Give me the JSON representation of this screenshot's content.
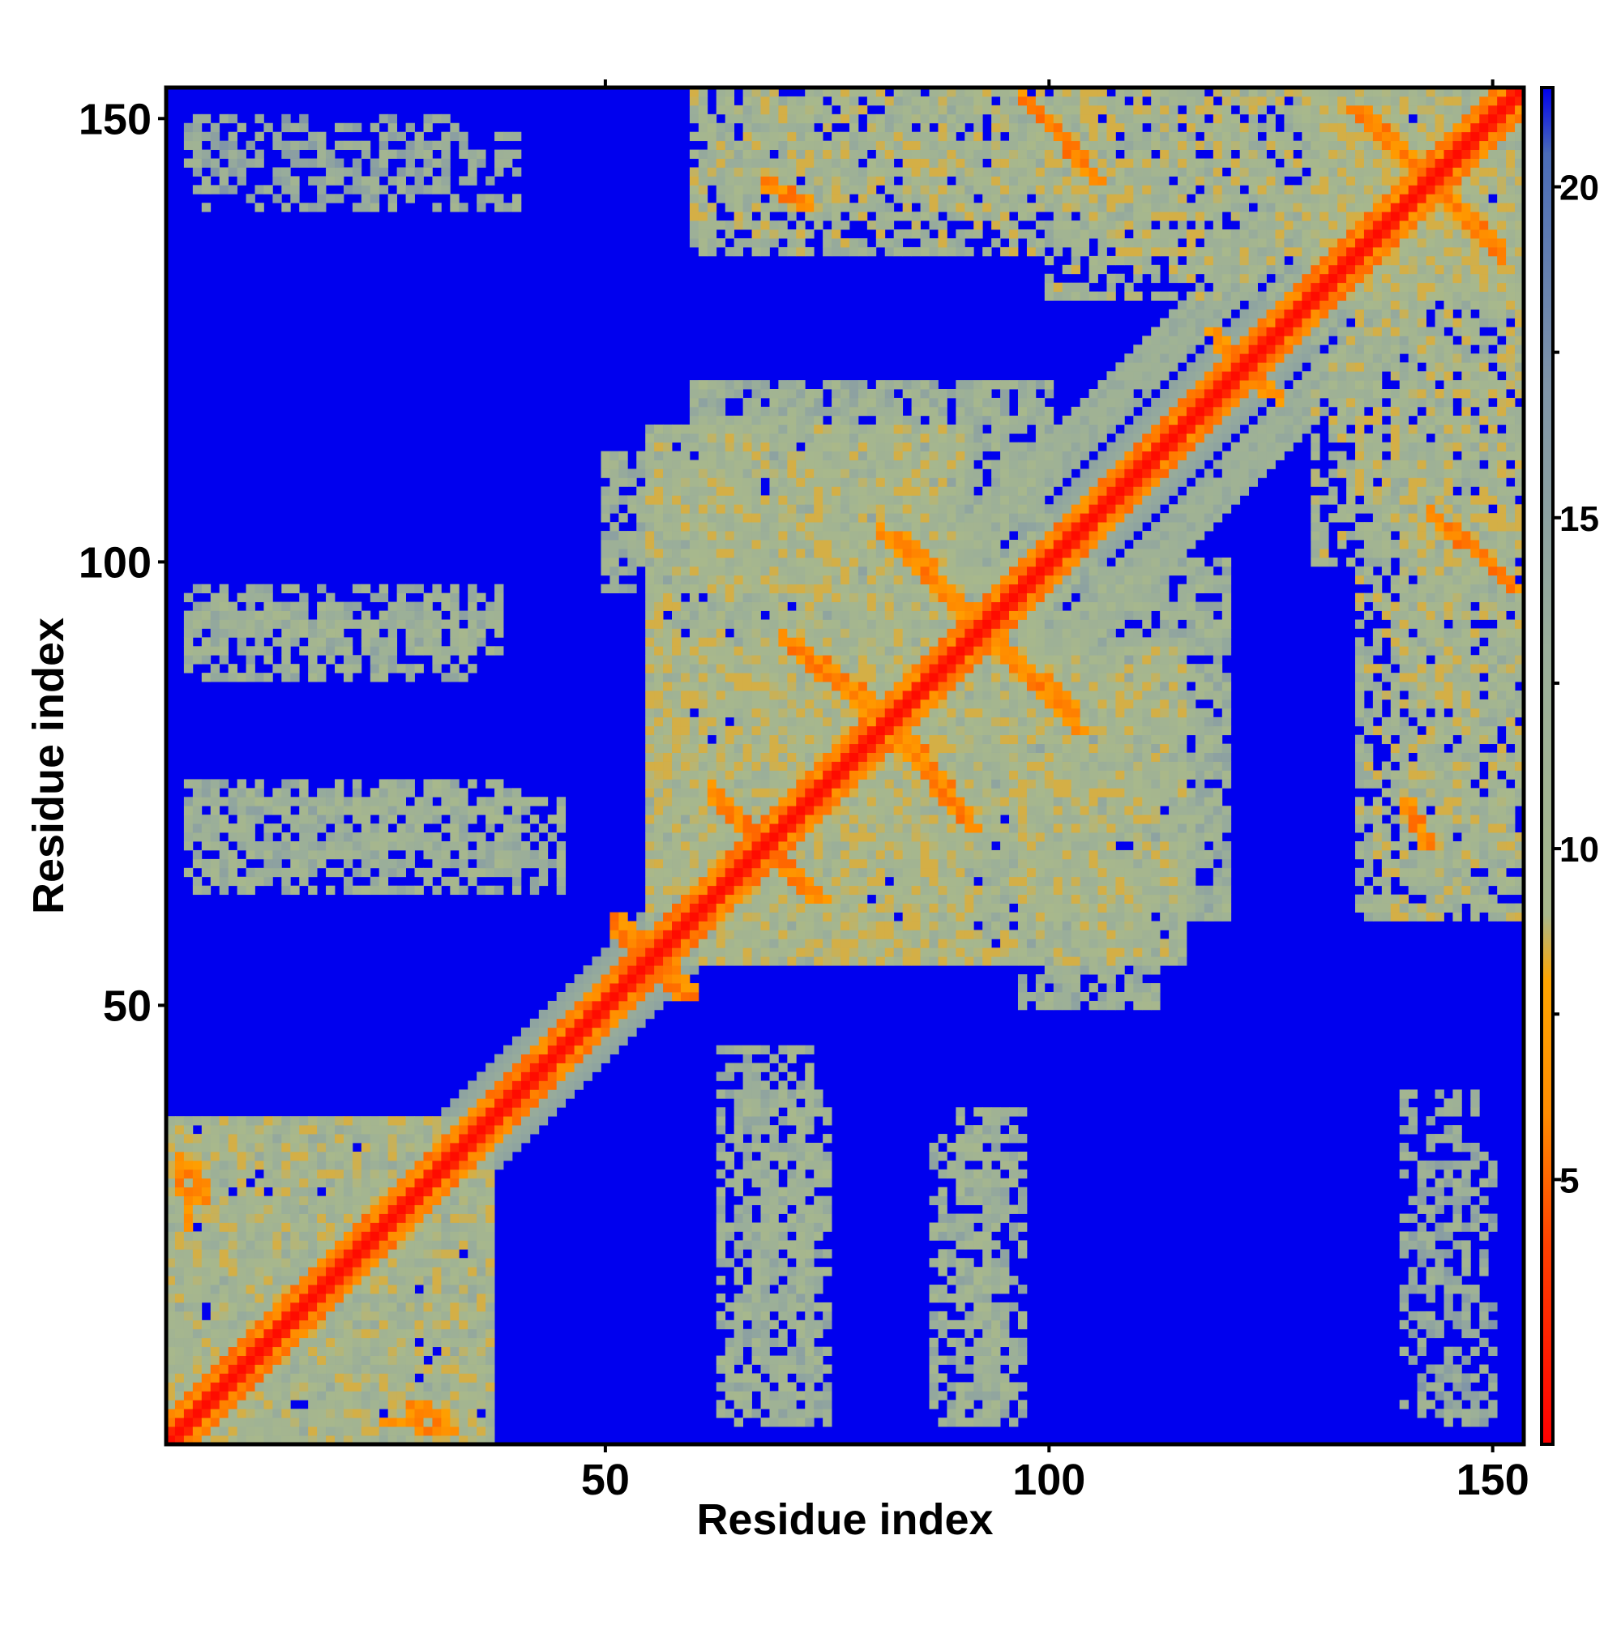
{
  "chart_data": {
    "type": "heatmap",
    "title": "",
    "xlabel": "Residue index",
    "ylabel": "Residue index",
    "x_range": [
      1,
      153
    ],
    "y_range": [
      1,
      153
    ],
    "x_ticks": [
      50,
      100,
      150
    ],
    "y_ticks": [
      50,
      100,
      150
    ],
    "x_tick_labels": [
      "50",
      "100",
      "150"
    ],
    "y_tick_labels": [
      "50",
      "100",
      "150"
    ],
    "grid": false,
    "colorbar": {
      "position": "right",
      "range": [
        1,
        21.5
      ],
      "ticks": [
        5,
        10,
        15,
        20
      ],
      "tick_labels": [
        "5",
        "10",
        "15",
        "20"
      ],
      "stops": [
        {
          "value": 1,
          "color": "#ff0000"
        },
        {
          "value": 4,
          "color": "#ff4000"
        },
        {
          "value": 6,
          "color": "#ff8c00"
        },
        {
          "value": 8,
          "color": "#ffa500"
        },
        {
          "value": 9,
          "color": "#a8b88c"
        },
        {
          "value": 13,
          "color": "#9aae9a"
        },
        {
          "value": 17,
          "color": "#7f94a8"
        },
        {
          "value": 20.5,
          "color": "#4a6cb8"
        },
        {
          "value": 21.5,
          "color": "#0000ee"
        }
      ],
      "background_color": "#0000ee"
    },
    "value_description": "pairwise residue distance (symmetric contact map, diagonal ~1-3)",
    "features": {
      "diagonal": {
        "width": 1.5,
        "value": 1.5
      },
      "diagonal_halo": {
        "width": 6,
        "value": 11
      },
      "secondary_band": {
        "from_offset": 8,
        "to_offset": 14,
        "start": 110,
        "end": 140,
        "value": 11
      },
      "regions": [
        {
          "x": [
            1,
            37
          ],
          "y": [
            1,
            37
          ],
          "value": 11,
          "density": 0.85
        },
        {
          "x": [
            55,
            90
          ],
          "y": [
            55,
            115
          ],
          "value": 11,
          "density": 0.7
        },
        {
          "x": [
            55,
            115
          ],
          "y": [
            55,
            90
          ],
          "value": 11,
          "density": 0.7
        },
        {
          "x": [
            90,
            120
          ],
          "y": [
            60,
            100
          ],
          "value": 12,
          "density": 0.55
        },
        {
          "x": [
            60,
            100
          ],
          "y": [
            90,
            120
          ],
          "value": 12,
          "density": 0.55
        },
        {
          "x": [
            60,
            110
          ],
          "y": [
            140,
            153
          ],
          "value": 11,
          "density": 0.6
        },
        {
          "x": [
            100,
            153
          ],
          "y": [
            130,
            153
          ],
          "value": 11,
          "density": 0.6
        },
        {
          "x": [
            135,
            153
          ],
          "y": [
            60,
            135
          ],
          "value": 11,
          "density": 0.7
        },
        {
          "x": [
            130,
            153
          ],
          "y": [
            130,
            153
          ],
          "value": 11,
          "density": 0.75
        },
        {
          "x": [
            3,
            40
          ],
          "y": [
            67,
            75
          ],
          "value": 12,
          "density": 0.6
        },
        {
          "x": [
            3,
            38
          ],
          "y": [
            90,
            97
          ],
          "value": 12,
          "density": 0.5
        },
        {
          "x": [
            3,
            35
          ],
          "y": [
            142,
            150
          ],
          "value": 14,
          "density": 0.35
        },
        {
          "x": [
            63,
            73
          ],
          "y": [
            3,
            45
          ],
          "value": 12,
          "density": 0.6
        },
        {
          "x": [
            87,
            95
          ],
          "y": [
            3,
            35
          ],
          "value": 12,
          "density": 0.55
        },
        {
          "x": [
            140,
            149
          ],
          "y": [
            3,
            40
          ],
          "value": 13,
          "density": 0.45
        },
        {
          "x": [
            97,
            112
          ],
          "y": [
            50,
            65
          ],
          "value": 12,
          "density": 0.5
        },
        {
          "x": [
            50,
            65
          ],
          "y": [
            97,
            112
          ],
          "value": 12,
          "density": 0.5
        }
      ],
      "orange_streaks": [
        {
          "from": [
            83,
            103
          ],
          "to": [
            93,
            91
          ],
          "value": 5
        },
        {
          "from": [
            70,
            91
          ],
          "to": [
            80,
            82
          ],
          "value": 5
        },
        {
          "from": [
            93,
            91
          ],
          "to": [
            103,
            81
          ],
          "value": 5
        },
        {
          "from": [
            82,
            83
          ],
          "to": [
            91,
            70
          ],
          "value": 5
        },
        {
          "from": [
            62,
            73
          ],
          "to": [
            73,
            63
          ],
          "value": 5
        },
        {
          "from": [
            68,
            68
          ],
          "to": [
            74,
            62
          ],
          "value": 5
        },
        {
          "from": [
            98,
            151
          ],
          "to": [
            105,
            143
          ],
          "value": 5
        },
        {
          "from": [
            134,
            151
          ],
          "to": [
            150,
            136
          ],
          "value": 5
        },
        {
          "from": [
            145,
            104
          ],
          "to": [
            152,
            97
          ],
          "value": 5
        },
        {
          "from": [
            3,
            32
          ],
          "to": [
            4,
            28
          ],
          "value": 5
        },
        {
          "from": [
            25,
            3
          ],
          "to": [
            32,
            2
          ],
          "value": 5
        },
        {
          "from": [
            51,
            60
          ],
          "to": [
            58,
            51
          ],
          "value": 5
        },
        {
          "from": [
            140,
            73
          ],
          "to": [
            142,
            68
          ],
          "value": 5
        },
        {
          "from": [
            118,
            126
          ],
          "to": [
            122,
            120
          ],
          "value": 5
        }
      ]
    }
  }
}
